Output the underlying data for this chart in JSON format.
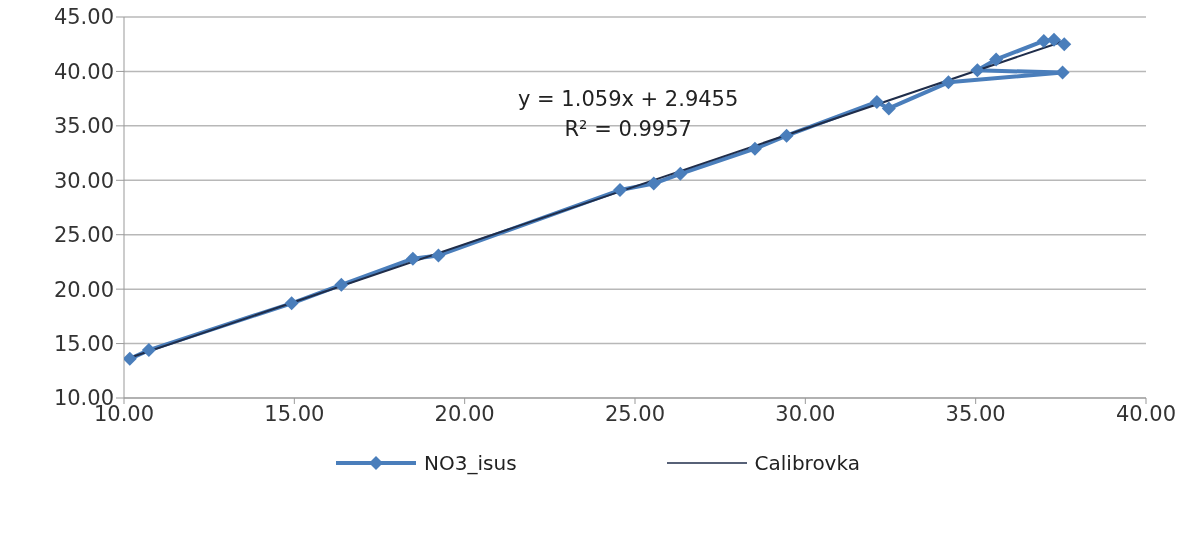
{
  "chart_data": {
    "type": "line",
    "xlim": [
      10,
      40
    ],
    "ylim": [
      10,
      45
    ],
    "xticks": [
      {
        "value": 10,
        "label": "10.00"
      },
      {
        "value": 15,
        "label": "15.00"
      },
      {
        "value": 20,
        "label": "20.00"
      },
      {
        "value": 25,
        "label": "25.00"
      },
      {
        "value": 30,
        "label": "30.00"
      },
      {
        "value": 35,
        "label": "35.00"
      },
      {
        "value": 40,
        "label": "40.00"
      }
    ],
    "yticks": [
      {
        "value": 10,
        "label": "10.00"
      },
      {
        "value": 15,
        "label": "15.00"
      },
      {
        "value": 20,
        "label": "20.00"
      },
      {
        "value": 25,
        "label": "25.00"
      },
      {
        "value": 30,
        "label": "30.00"
      },
      {
        "value": 35,
        "label": "35.00"
      },
      {
        "value": 40,
        "label": "40.00"
      },
      {
        "value": 45,
        "label": "45.00"
      }
    ],
    "grid": "y",
    "legend": "bottom",
    "marker": "diamond",
    "annotations": [
      "y = 1.059x + 2.9455",
      "R² = 0.9957"
    ],
    "series": [
      {
        "name": "NO3_isus",
        "color": "#4a7ebb",
        "x": [
          10.17,
          10.73,
          14.92,
          16.38,
          18.48,
          19.23,
          24.56,
          25.55,
          26.33,
          28.52,
          29.45,
          32.1,
          32.45,
          34.2,
          37.55,
          35.05,
          35.6,
          37.0,
          37.3,
          37.6
        ],
        "values": [
          13.6,
          14.4,
          18.7,
          20.4,
          22.8,
          23.1,
          29.1,
          29.7,
          30.6,
          32.9,
          34.1,
          37.2,
          36.6,
          39.0,
          39.9,
          40.1,
          41.1,
          42.8,
          42.9,
          42.5
        ]
      },
      {
        "name": "Calibrovka",
        "color": "#1f2d4a",
        "marker": "none",
        "x": [
          10.17,
          37.6
        ],
        "values": [
          13.7,
          42.8
        ]
      }
    ]
  }
}
